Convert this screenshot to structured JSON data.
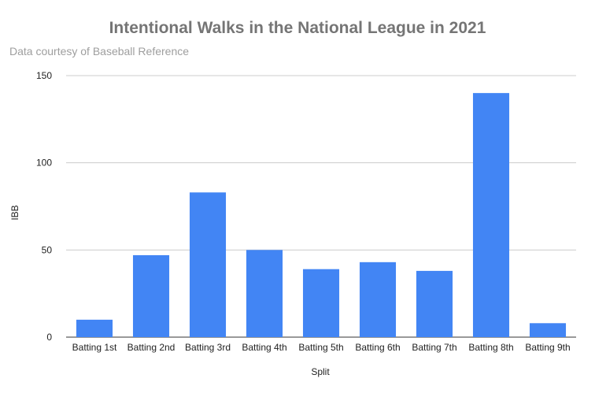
{
  "chart_data": {
    "type": "bar",
    "title": "Intentional Walks in the National League in 2021",
    "subtitle": "Data courtesy of Baseball Reference",
    "xlabel": "Split",
    "ylabel": "IBB",
    "categories": [
      "Batting 1st",
      "Batting 2nd",
      "Batting 3rd",
      "Batting 4th",
      "Batting 5th",
      "Batting 6th",
      "Batting 7th",
      "Batting 8th",
      "Batting 9th"
    ],
    "series": [
      {
        "values": [
          10,
          47,
          83,
          50,
          39,
          43,
          38,
          140,
          8
        ]
      }
    ],
    "ylim": [
      0,
      150
    ],
    "yticks": [
      0,
      50,
      100,
      150
    ],
    "grid": true,
    "legend": "none",
    "bar_color": "#4285f4",
    "grid_color": "#cccccc"
  }
}
